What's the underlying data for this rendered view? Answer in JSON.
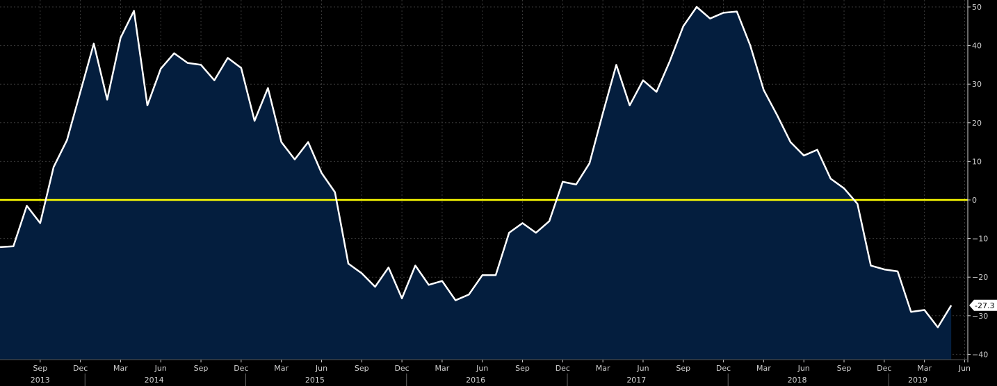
{
  "chart_data": {
    "type": "area",
    "title": "",
    "xlabel": "",
    "ylabel": "",
    "ylim": [
      -40,
      50
    ],
    "yticks": [
      50,
      40,
      30,
      20,
      10,
      0,
      -10,
      -20,
      -30,
      -40
    ],
    "grid": true,
    "colors": {
      "background": "#000000",
      "area_fill": "#041e3e",
      "line": "#ffffff",
      "zero_line": "#ffff00",
      "grid": "#3a3a3a",
      "axis_text": "#d0d0d0"
    },
    "last_value_label": "-27.3",
    "x_tick_labels": [
      "Sep",
      "Dec",
      "Mar",
      "Jun",
      "Sep",
      "Dec",
      "Mar",
      "Jun",
      "Sep",
      "Dec",
      "Mar",
      "Jun",
      "Sep",
      "Dec",
      "Mar",
      "Jun",
      "Sep",
      "Dec",
      "Mar",
      "Jun",
      "Sep",
      "Dec",
      "Mar",
      "Jun"
    ],
    "year_labels": [
      "2013",
      "2014",
      "2015",
      "2016",
      "2017",
      "2018",
      "2019"
    ],
    "reference_lines": [
      {
        "value": 0
      }
    ],
    "series": [
      {
        "x": [
          "2013-06",
          "2013-07",
          "2013-08",
          "2013-09",
          "2013-10",
          "2013-11",
          "2013-12",
          "2014-01",
          "2014-02",
          "2014-03",
          "2014-04",
          "2014-05",
          "2014-06",
          "2014-07",
          "2014-08",
          "2014-09",
          "2014-10",
          "2014-11",
          "2014-12",
          "2015-01",
          "2015-02",
          "2015-03",
          "2015-04",
          "2015-05",
          "2015-06",
          "2015-07",
          "2015-08",
          "2015-09",
          "2015-10",
          "2015-11",
          "2015-12",
          "2016-01",
          "2016-02",
          "2016-03",
          "2016-04",
          "2016-05",
          "2016-06",
          "2016-07",
          "2016-08",
          "2016-09",
          "2016-10",
          "2016-11",
          "2016-12",
          "2017-01",
          "2017-02",
          "2017-03",
          "2017-04",
          "2017-05",
          "2017-06",
          "2017-07",
          "2017-08",
          "2017-09",
          "2017-10",
          "2017-11",
          "2017-12",
          "2018-01",
          "2018-02",
          "2018-03",
          "2018-04",
          "2018-05",
          "2018-06",
          "2018-07",
          "2018-08",
          "2018-09",
          "2018-10",
          "2018-11",
          "2018-12",
          "2019-01",
          "2019-02",
          "2019-03",
          "2019-04",
          "2019-05"
        ],
        "values": [
          -12.2,
          -12.0,
          -1.5,
          -6.0,
          8.5,
          15.5,
          28.0,
          40.5,
          26.0,
          42.0,
          49.0,
          24.5,
          34.0,
          38.0,
          35.5,
          35.0,
          31.0,
          36.8,
          34.2,
          20.5,
          29.0,
          15.0,
          10.5,
          15.0,
          7.0,
          2.0,
          -16.5,
          -19.0,
          -22.5,
          -17.5,
          -25.5,
          -17.0,
          -22.0,
          -21.0,
          -26.0,
          -24.5,
          -19.5,
          -19.5,
          -8.5,
          -6.0,
          -8.5,
          -5.5,
          4.7,
          4.0,
          9.5,
          22.5,
          35.0,
          24.5,
          31.0,
          28.0,
          36.0,
          45.0,
          50.0,
          47.0,
          48.5,
          48.8,
          40.0,
          28.5,
          22.0,
          15.0,
          11.5,
          13.0,
          5.5,
          3.0,
          -1.0,
          -17.0,
          -18.0,
          -18.5,
          -29.0,
          -28.5,
          -33.0,
          -27.3
        ]
      }
    ]
  }
}
